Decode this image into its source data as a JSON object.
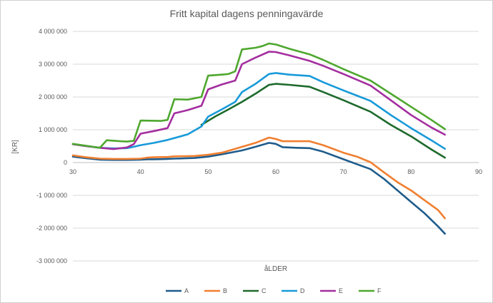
{
  "chart_data": {
    "type": "line",
    "title": "Fritt kapital dagens penningavärde",
    "xlabel": "åLDER",
    "ylabel": "[KR]",
    "xlim": [
      30,
      90
    ],
    "ylim": [
      -3000000,
      4000000
    ],
    "x_ticks": [
      "30",
      "40",
      "50",
      "60",
      "70",
      "80",
      "90"
    ],
    "y_ticks": [
      "4 000 000",
      "3 000 000",
      "2 000 000",
      "1 000 000",
      "0",
      "-1 000 000",
      "-2 000 000",
      "-3 000 000"
    ],
    "grid": true,
    "legend_position": "bottom",
    "series": [
      {
        "name": "A",
        "color": "#1F5C8B",
        "points": [
          [
            30,
            180000
          ],
          [
            32,
            130000
          ],
          [
            34,
            90000
          ],
          [
            36,
            80000
          ],
          [
            38,
            80000
          ],
          [
            40,
            90000
          ],
          [
            41,
            100000
          ],
          [
            42,
            100000
          ],
          [
            44,
            110000
          ],
          [
            45,
            120000
          ],
          [
            48,
            140000
          ],
          [
            50,
            180000
          ],
          [
            52,
            250000
          ],
          [
            55,
            370000
          ],
          [
            57,
            480000
          ],
          [
            59,
            600000
          ],
          [
            60,
            570000
          ],
          [
            61,
            470000
          ],
          [
            63,
            450000
          ],
          [
            65,
            440000
          ],
          [
            67,
            330000
          ],
          [
            70,
            100000
          ],
          [
            72,
            -50000
          ],
          [
            74,
            -200000
          ],
          [
            76,
            -500000
          ],
          [
            78,
            -850000
          ],
          [
            80,
            -1200000
          ],
          [
            82,
            -1550000
          ],
          [
            84,
            -1950000
          ],
          [
            85,
            -2170000
          ]
        ]
      },
      {
        "name": "B",
        "color": "#F07F30",
        "points": [
          [
            30,
            220000
          ],
          [
            32,
            160000
          ],
          [
            34,
            120000
          ],
          [
            36,
            110000
          ],
          [
            38,
            110000
          ],
          [
            40,
            120000
          ],
          [
            41,
            150000
          ],
          [
            42,
            160000
          ],
          [
            44,
            170000
          ],
          [
            45,
            190000
          ],
          [
            48,
            200000
          ],
          [
            50,
            240000
          ],
          [
            52,
            300000
          ],
          [
            54,
            420000
          ],
          [
            57,
            600000
          ],
          [
            59,
            760000
          ],
          [
            60,
            720000
          ],
          [
            61,
            650000
          ],
          [
            63,
            650000
          ],
          [
            65,
            650000
          ],
          [
            67,
            530000
          ],
          [
            70,
            300000
          ],
          [
            72,
            180000
          ],
          [
            74,
            10000
          ],
          [
            76,
            -300000
          ],
          [
            78,
            -600000
          ],
          [
            80,
            -850000
          ],
          [
            82,
            -1150000
          ],
          [
            84,
            -1450000
          ],
          [
            85,
            -1700000
          ]
        ]
      },
      {
        "name": "C",
        "color": "#1D6A2C",
        "points": [
          [
            49,
            1150000
          ],
          [
            51,
            1400000
          ],
          [
            53,
            1620000
          ],
          [
            55,
            1850000
          ],
          [
            57,
            2100000
          ],
          [
            59,
            2370000
          ],
          [
            60,
            2400000
          ],
          [
            62,
            2370000
          ],
          [
            65,
            2310000
          ],
          [
            67,
            2150000
          ],
          [
            70,
            1900000
          ],
          [
            74,
            1550000
          ],
          [
            77,
            1150000
          ],
          [
            80,
            800000
          ],
          [
            83,
            400000
          ],
          [
            85,
            150000
          ]
        ]
      },
      {
        "name": "D",
        "color": "#189AD9",
        "points": [
          [
            30,
            560000
          ],
          [
            32,
            500000
          ],
          [
            34,
            450000
          ],
          [
            36,
            430000
          ],
          [
            38,
            440000
          ],
          [
            39,
            480000
          ],
          [
            40,
            530000
          ],
          [
            42,
            600000
          ],
          [
            44,
            690000
          ],
          [
            47,
            860000
          ],
          [
            49,
            1100000
          ],
          [
            50,
            1400000
          ],
          [
            52,
            1620000
          ],
          [
            54,
            1850000
          ],
          [
            55,
            2150000
          ],
          [
            57,
            2400000
          ],
          [
            59,
            2700000
          ],
          [
            60,
            2730000
          ],
          [
            62,
            2680000
          ],
          [
            65,
            2640000
          ],
          [
            67,
            2450000
          ],
          [
            70,
            2200000
          ],
          [
            74,
            1880000
          ],
          [
            77,
            1450000
          ],
          [
            80,
            1050000
          ],
          [
            83,
            680000
          ],
          [
            85,
            420000
          ]
        ]
      },
      {
        "name": "E",
        "color": "#A42E9F",
        "points": [
          [
            30,
            560000
          ],
          [
            32,
            500000
          ],
          [
            34,
            450000
          ],
          [
            36,
            410000
          ],
          [
            38,
            460000
          ],
          [
            39,
            560000
          ],
          [
            40,
            880000
          ],
          [
            42,
            960000
          ],
          [
            44,
            1050000
          ],
          [
            45,
            1500000
          ],
          [
            47,
            1600000
          ],
          [
            49,
            1730000
          ],
          [
            50,
            2230000
          ],
          [
            52,
            2380000
          ],
          [
            54,
            2500000
          ],
          [
            55,
            3000000
          ],
          [
            57,
            3200000
          ],
          [
            59,
            3380000
          ],
          [
            60,
            3370000
          ],
          [
            62,
            3270000
          ],
          [
            65,
            3100000
          ],
          [
            67,
            2950000
          ],
          [
            70,
            2700000
          ],
          [
            74,
            2350000
          ],
          [
            77,
            1900000
          ],
          [
            80,
            1450000
          ],
          [
            83,
            1070000
          ],
          [
            85,
            850000
          ]
        ]
      },
      {
        "name": "F",
        "color": "#4EA72E",
        "points": [
          [
            30,
            570000
          ],
          [
            32,
            510000
          ],
          [
            34,
            450000
          ],
          [
            35,
            680000
          ],
          [
            37,
            650000
          ],
          [
            38,
            640000
          ],
          [
            39,
            660000
          ],
          [
            40,
            1280000
          ],
          [
            43,
            1270000
          ],
          [
            44,
            1300000
          ],
          [
            45,
            1930000
          ],
          [
            47,
            1920000
          ],
          [
            49,
            2000000
          ],
          [
            50,
            2650000
          ],
          [
            52,
            2680000
          ],
          [
            53,
            2700000
          ],
          [
            54,
            2780000
          ],
          [
            55,
            3450000
          ],
          [
            57,
            3500000
          ],
          [
            58,
            3550000
          ],
          [
            59,
            3630000
          ],
          [
            60,
            3600000
          ],
          [
            62,
            3470000
          ],
          [
            65,
            3300000
          ],
          [
            67,
            3130000
          ],
          [
            70,
            2850000
          ],
          [
            74,
            2500000
          ],
          [
            77,
            2100000
          ],
          [
            80,
            1700000
          ],
          [
            83,
            1300000
          ],
          [
            85,
            1020000
          ]
        ]
      }
    ]
  }
}
